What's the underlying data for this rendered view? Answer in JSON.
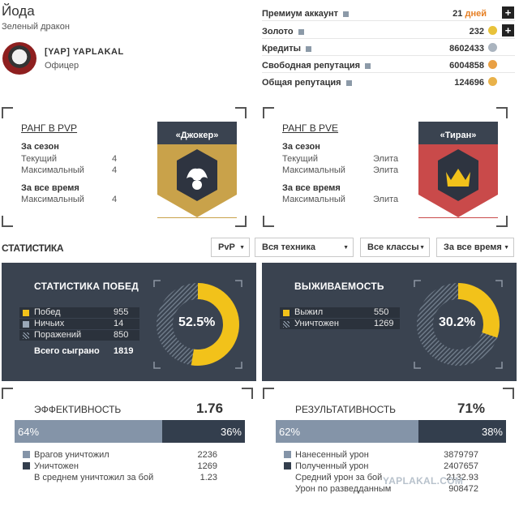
{
  "player": {
    "name": "Йода",
    "subtitle": "Зеленый дракон",
    "clan": "[YAP]   YAPLAKAL",
    "role": "Офицер"
  },
  "resources": [
    {
      "label": "Премиум аккаунт",
      "value": "21",
      "unit": "дней"
    },
    {
      "label": "Золото",
      "value": "232"
    },
    {
      "label": "Кредиты",
      "value": "8602433"
    },
    {
      "label": "Свободная репутация",
      "value": "6004858"
    },
    {
      "label": "Общая репутация",
      "value": "124696"
    }
  ],
  "pvp": {
    "title": "РАНГ В PVP",
    "season": "За сезон",
    "cur_label": "Текущий",
    "cur": "4",
    "max_label": "Максимальный",
    "max": "4",
    "alltime": "За все время",
    "all_max_label": "Максимальный",
    "all_max": "4",
    "badge": "«Джокер»",
    "color": "#c9a24a"
  },
  "pve": {
    "title": "РАНГ В PVE",
    "season": "За сезон",
    "cur_label": "Текущий",
    "cur": "Элита",
    "max_label": "Максимальный",
    "max": "Элита",
    "alltime": "За все время",
    "all_max_label": "Максимальный",
    "all_max": "Элита",
    "badge": "«Тиран»",
    "color": "#c94a4a"
  },
  "stats": {
    "title": "СТАТИСТИКА",
    "filters": [
      "PvP",
      "Вся техника",
      "Все классы",
      "За все время"
    ]
  },
  "wins": {
    "title": "СТАТИСТИКА ПОБЕД",
    "rows": [
      {
        "label": "Побед",
        "value": "955"
      },
      {
        "label": "Ничьих",
        "value": "14"
      },
      {
        "label": "Поражений",
        "value": "850"
      }
    ],
    "total_label": "Всего сыграно",
    "total": "1819",
    "pct": "52.5%",
    "fraction": 0.525
  },
  "surv": {
    "title": "ВЫЖИВАЕМОСТЬ",
    "rows": [
      {
        "label": "Выжил",
        "value": "550"
      },
      {
        "label": "Уничтожен",
        "value": "1269"
      }
    ],
    "pct": "30.2%",
    "fraction": 0.302
  },
  "eff": {
    "title": "ЭФФЕКТИВНОСТЬ",
    "value": "1.76",
    "left": "64%",
    "right": "36%",
    "lf": 0.64,
    "rows": [
      {
        "label": "Врагов уничтожил",
        "value": "2236"
      },
      {
        "label": "Уничтожен",
        "value": "1269"
      },
      {
        "label": "В среднем уничтожил за бой",
        "value": "1.23"
      }
    ]
  },
  "res": {
    "title": "РЕЗУЛЬТАТИВНОСТЬ",
    "value": "71%",
    "left": "62%",
    "right": "38%",
    "lf": 0.62,
    "rows": [
      {
        "label": "Нанесенный урон",
        "value": "3879797"
      },
      {
        "label": "Полученный урон",
        "value": "2407657"
      },
      {
        "label": "Средний урон за бой",
        "value": "2132.93"
      },
      {
        "label": "Урон по разведданным",
        "value": "908472"
      }
    ]
  },
  "watermark": "YAPLAKAL.COM"
}
